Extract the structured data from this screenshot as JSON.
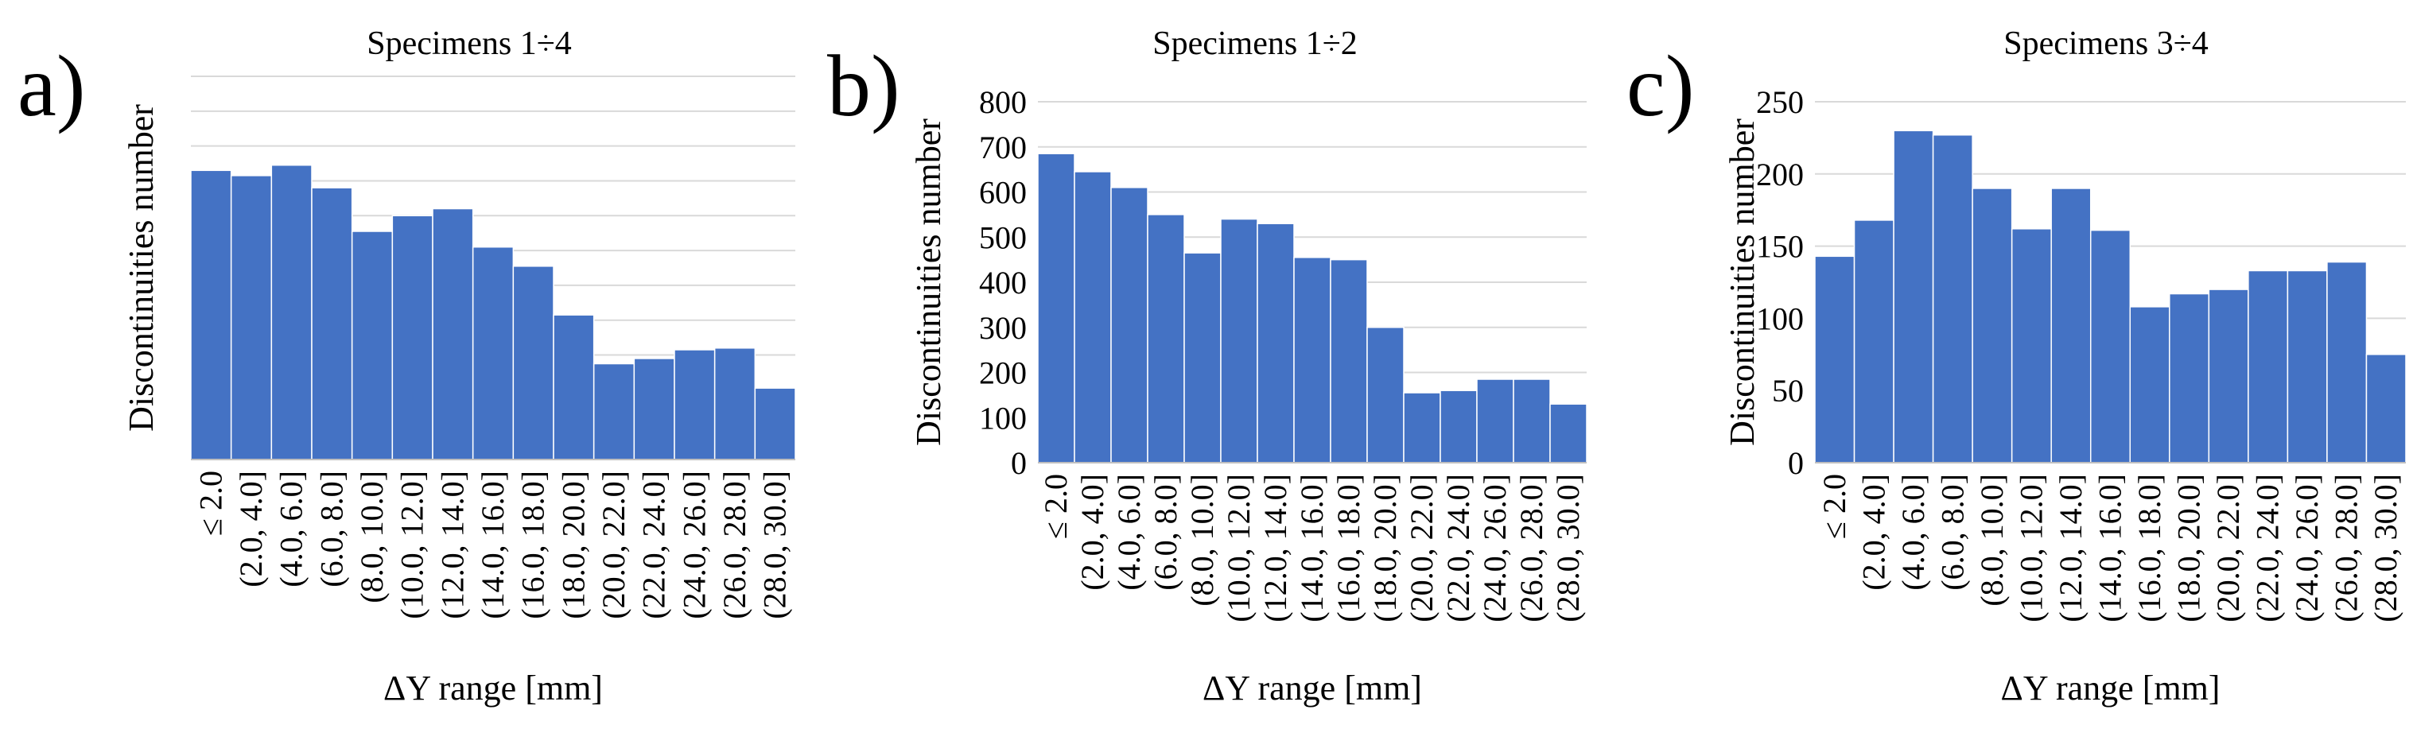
{
  "colors": {
    "bar": "#4472C4",
    "grid": "#d9d9d9",
    "axis": "#bfbfbf",
    "text": "#000000"
  },
  "chart_data": [
    {
      "panel_label": "a)",
      "type": "bar",
      "title": "Specimens 1÷4",
      "xlabel": "ΔY range [mm]",
      "ylabel": "Discontinuities number",
      "categories": [
        "≤ 2.0",
        "(2.0, 4.0]",
        "(4.0, 6.0]",
        "(6.0, 8.0]",
        "(8.0, 10.0]",
        "(10.0, 12.0]",
        "(12.0, 14.0]",
        "(14.0, 16.0]",
        "(16.0, 18.0]",
        "(18.0, 20.0]",
        "(20.0, 22.0]",
        "(22.0, 24.0]",
        "(24.0, 26.0]",
        "(26.0, 28.0]",
        "(28.0, 30.0]"
      ],
      "values": [
        830,
        815,
        845,
        780,
        655,
        700,
        720,
        610,
        555,
        415,
        275,
        290,
        315,
        320,
        205
      ],
      "ylim": [
        0,
        1100
      ],
      "ytick_step": 100,
      "show_ytick_labels": false,
      "grid": true
    },
    {
      "panel_label": "b)",
      "type": "bar",
      "title": "Specimens 1÷2",
      "xlabel": "ΔY range [mm]",
      "ylabel": "Discontinuities number",
      "categories": [
        "≤ 2.0",
        "(2.0, 4.0]",
        "(4.0, 6.0]",
        "(6.0, 8.0]",
        "(8.0, 10.0]",
        "(10.0, 12.0]",
        "(12.0, 14.0]",
        "(14.0, 16.0]",
        "(16.0, 18.0]",
        "(18.0, 20.0]",
        "(20.0, 22.0]",
        "(22.0, 24.0]",
        "(24.0, 26.0]",
        "(26.0, 28.0]",
        "(28.0, 30.0]"
      ],
      "values": [
        685,
        645,
        610,
        550,
        465,
        540,
        530,
        455,
        450,
        300,
        155,
        160,
        185,
        185,
        130
      ],
      "ylim": [
        0,
        800
      ],
      "ytick_step": 100,
      "show_ytick_labels": true,
      "grid": true
    },
    {
      "panel_label": "c)",
      "type": "bar",
      "title": "Specimens 3÷4",
      "xlabel": "ΔY range [mm]",
      "ylabel": "Discontinuities number",
      "categories": [
        "≤ 2.0",
        "(2.0, 4.0]",
        "(4.0, 6.0]",
        "(6.0, 8.0]",
        "(8.0, 10.0]",
        "(10.0, 12.0]",
        "(12.0, 14.0]",
        "(14.0, 16.0]",
        "(16.0, 18.0]",
        "(18.0, 20.0]",
        "(20.0, 22.0]",
        "(22.0, 24.0]",
        "(24.0, 26.0]",
        "(26.0, 28.0]",
        "(28.0, 30.0]"
      ],
      "values": [
        143,
        168,
        230,
        227,
        190,
        162,
        190,
        161,
        108,
        117,
        120,
        133,
        133,
        139,
        75
      ],
      "ylim": [
        0,
        250
      ],
      "ytick_step": 50,
      "show_ytick_labels": true,
      "grid": true
    }
  ]
}
